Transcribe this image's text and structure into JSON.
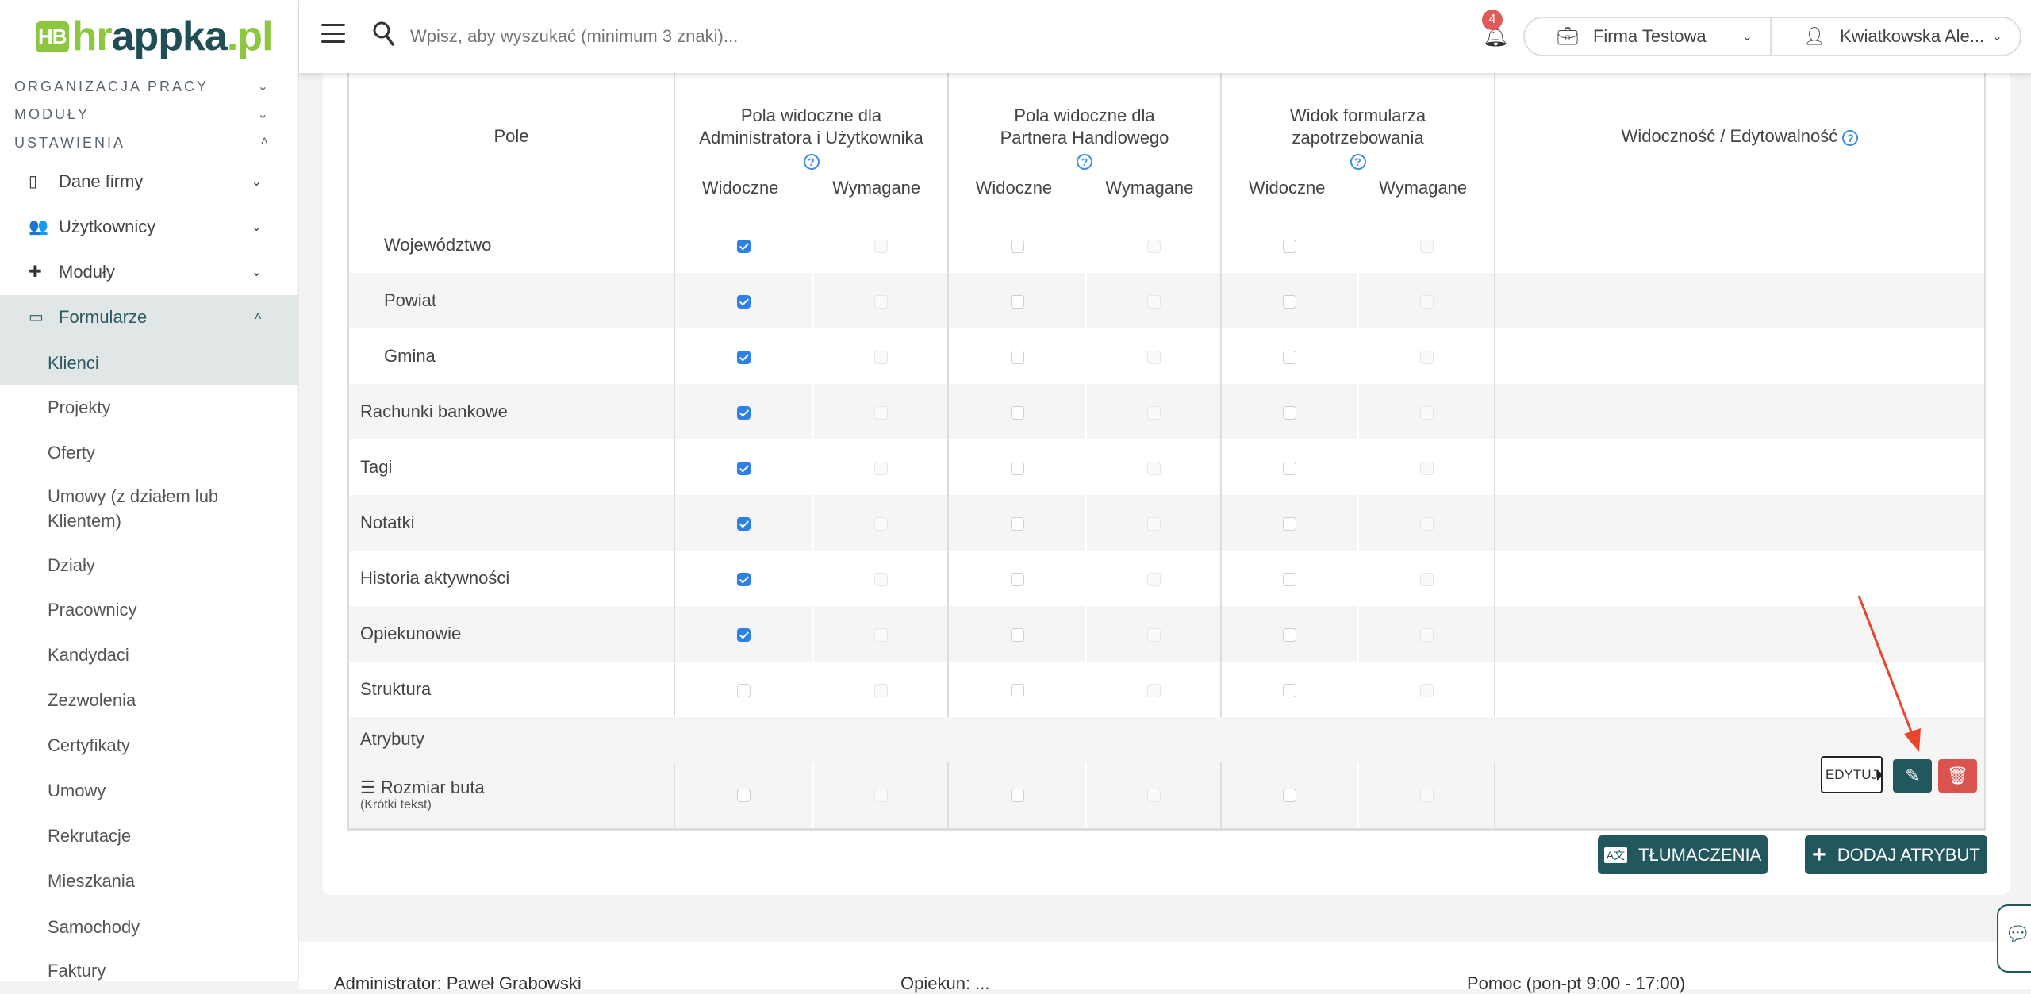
{
  "logo": {
    "hb": "HB",
    "hr": "hr",
    "appka": "appka",
    "dot": ".pl"
  },
  "sidebar": {
    "sections": [
      {
        "label": "ORGANIZACJA PRACY",
        "expanded": false
      },
      {
        "label": "MODUŁY",
        "expanded": false
      },
      {
        "label": "USTAWIENIA",
        "expanded": true
      }
    ],
    "items": [
      {
        "label": "Dane firmy",
        "icon": "building-icon",
        "expanded": false
      },
      {
        "label": "Użytkownicy",
        "icon": "users-icon",
        "expanded": false
      },
      {
        "label": "Moduły",
        "icon": "puzzle-icon",
        "expanded": false
      },
      {
        "label": "Formularze",
        "icon": "id-card-icon",
        "expanded": true
      }
    ],
    "subitems": [
      "Klienci",
      "Projekty",
      "Oferty",
      "Umowy (z działem lub Klientem)",
      "Działy",
      "Pracownicy",
      "Kandydaci",
      "Zezwolenia",
      "Certyfikaty",
      "Umowy",
      "Rekrutacje",
      "Mieszkania",
      "Samochody",
      "Faktury"
    ],
    "active_subitem": "Klienci"
  },
  "header": {
    "search_placeholder": "Wpisz, aby wyszukać (minimum 3 znaki)...",
    "notifications_count": "4",
    "company": "Firma Testowa",
    "user": "Kwiatkowska Ale..."
  },
  "table": {
    "col_field": "Pole",
    "groups": [
      {
        "title": "Pola widoczne dla Administratora i Użytkownika",
        "visible": "Widoczne",
        "required": "Wymagane"
      },
      {
        "title": "Pola widoczne dla Partnera Handlowego",
        "visible": "Widoczne",
        "required": "Wymagane"
      },
      {
        "title": "Widok formularza zapotrzebowania",
        "visible": "Widoczne",
        "required": "Wymagane"
      }
    ],
    "col_visibility": "Widoczność / Edytowalność",
    "help_icon": "?",
    "rows": [
      {
        "name": "Województwo",
        "indent": true,
        "checks": [
          true,
          false,
          false,
          false,
          false,
          false
        ]
      },
      {
        "name": "Powiat",
        "indent": true,
        "checks": [
          true,
          false,
          false,
          false,
          false,
          false
        ]
      },
      {
        "name": "Gmina",
        "indent": true,
        "checks": [
          true,
          false,
          false,
          false,
          false,
          false
        ]
      },
      {
        "name": "Rachunki bankowe",
        "indent": false,
        "checks": [
          true,
          false,
          false,
          false,
          false,
          false
        ]
      },
      {
        "name": "Tagi",
        "indent": false,
        "checks": [
          true,
          false,
          false,
          false,
          false,
          false
        ]
      },
      {
        "name": "Notatki",
        "indent": false,
        "checks": [
          true,
          false,
          false,
          false,
          false,
          false
        ]
      },
      {
        "name": "Historia aktywności",
        "indent": false,
        "checks": [
          true,
          false,
          false,
          false,
          false,
          false
        ]
      },
      {
        "name": "Opiekunowie",
        "indent": false,
        "checks": [
          true,
          false,
          false,
          false,
          false,
          false
        ]
      },
      {
        "name": "Struktura",
        "indent": false,
        "checks": [
          false,
          false,
          false,
          false,
          false,
          false
        ]
      }
    ],
    "section_attributes": "Atrybuty",
    "attribute": {
      "name": "Rozmiar buta",
      "type": "(Krótki tekst)",
      "checks": [
        false,
        false,
        false,
        false,
        false,
        false
      ]
    },
    "edit_tooltip": "EDYTUJ"
  },
  "buttons": {
    "translations": "TŁUMACZENIA",
    "add_attribute": "DODAJ ATRYBUT"
  },
  "colors": {
    "primary": "#22575e",
    "danger": "#d9534f",
    "accent_green": "#8dc63f",
    "checkbox": "#2d80e6",
    "annotation_arrow": "#e8452c"
  },
  "footer": {
    "admin": "Administrator: Paweł Grabowski",
    "caretaker": "Opiekun: ...",
    "help": "Pomoc (pon-pt 9:00 - 17:00)"
  }
}
